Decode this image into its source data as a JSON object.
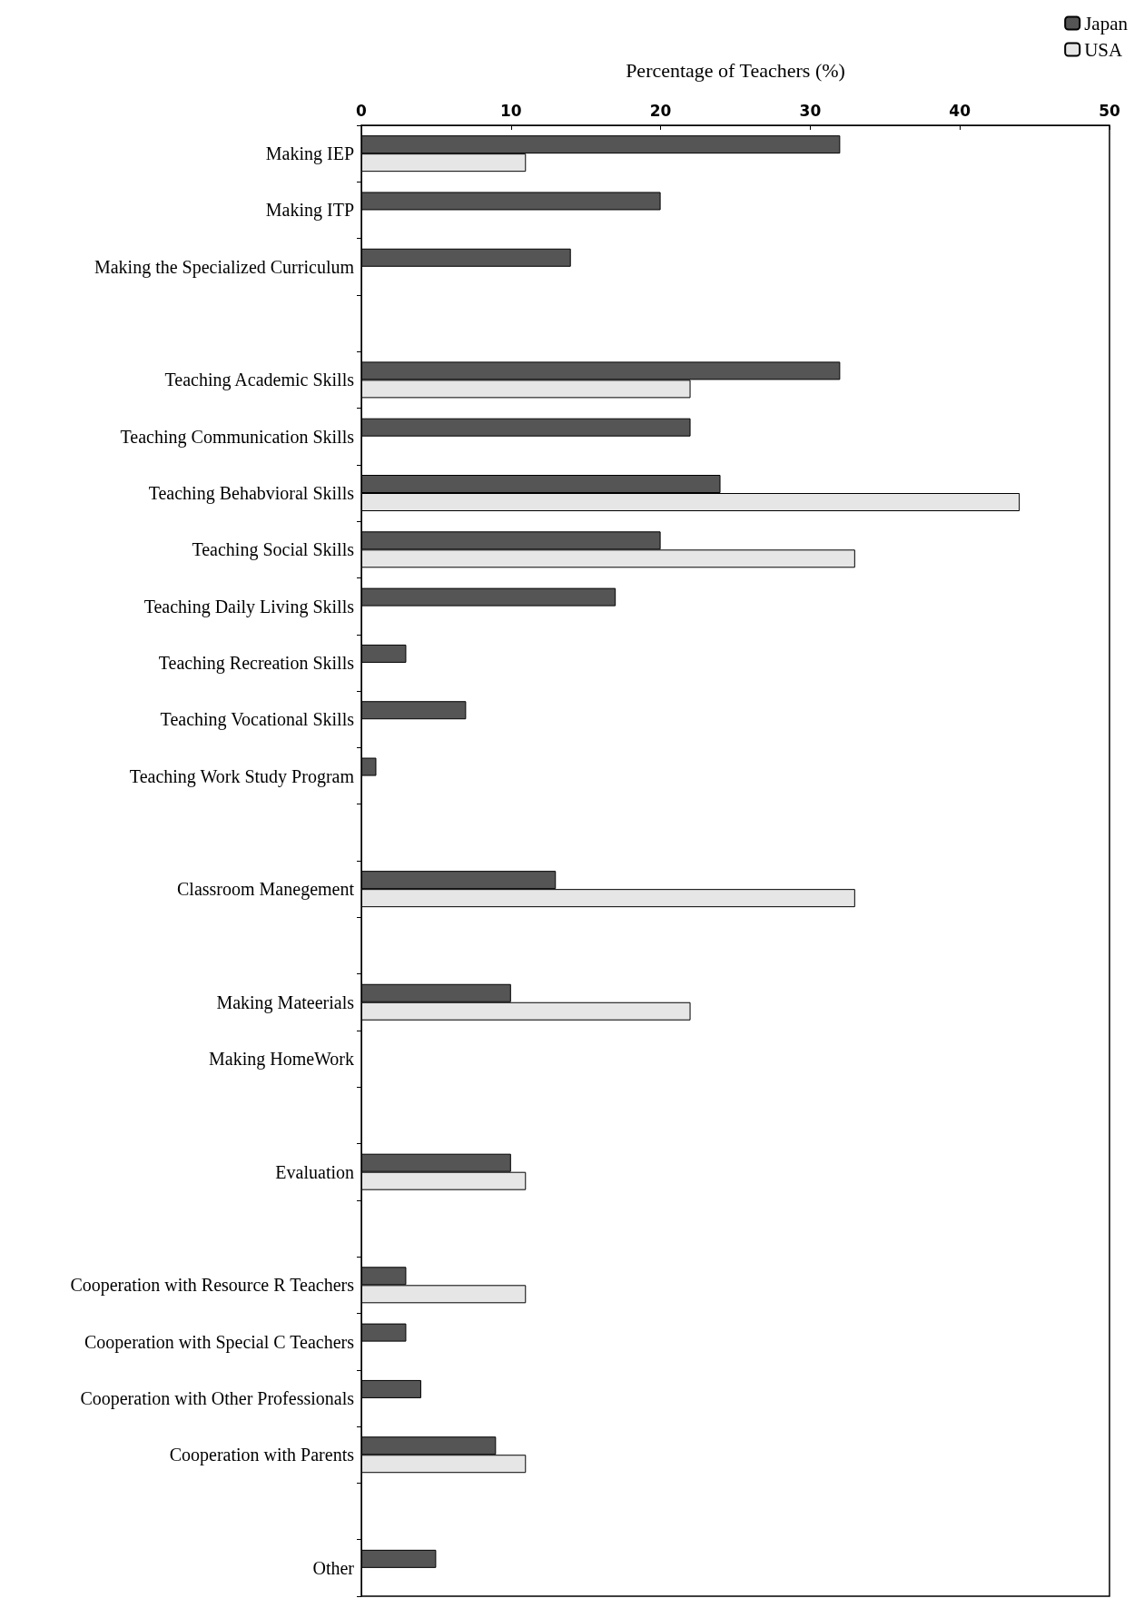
{
  "chart_data": {
    "type": "bar",
    "orientation": "horizontal",
    "xlabel": "Percentage of Teachers (%)",
    "categories": [
      "Making IEP",
      "Making ITP",
      "Making the Specialized Curriculum",
      null,
      "Teaching Academic Skills",
      "Teaching Communication Skills",
      "Teaching Behabvioral Skills",
      "Teaching Social Skills",
      "Teaching Daily Living Skills",
      "Teaching Recreation Skills",
      "Teaching Vocational Skills",
      "Teaching Work Study Program",
      null,
      "Classroom Manegement",
      null,
      "Making Mateerials",
      "Making HomeWork",
      null,
      "Evaluation",
      null,
      "Cooperation with Resource R Teachers",
      "Cooperation with Special C Teachers",
      "Cooperation with Other Professionals",
      "Cooperation with Parents",
      null,
      "Other"
    ],
    "series": [
      {
        "name": "Japan",
        "color": "#555555",
        "values": [
          32,
          20,
          14,
          null,
          32,
          22,
          24,
          20,
          17,
          3,
          7,
          1,
          null,
          13,
          null,
          10,
          null,
          null,
          10,
          null,
          3,
          3,
          4,
          9,
          null,
          5
        ]
      },
      {
        "name": "USA",
        "color": "#e6e6e6",
        "values": [
          11,
          null,
          null,
          null,
          22,
          null,
          44,
          33,
          null,
          null,
          null,
          null,
          null,
          33,
          null,
          22,
          null,
          null,
          11,
          null,
          11,
          null,
          null,
          11,
          null,
          null
        ]
      }
    ],
    "xlim": [
      0,
      50
    ],
    "xticks": [
      0,
      10,
      20,
      30,
      40,
      50
    ],
    "grid": false,
    "legend": "top right"
  }
}
